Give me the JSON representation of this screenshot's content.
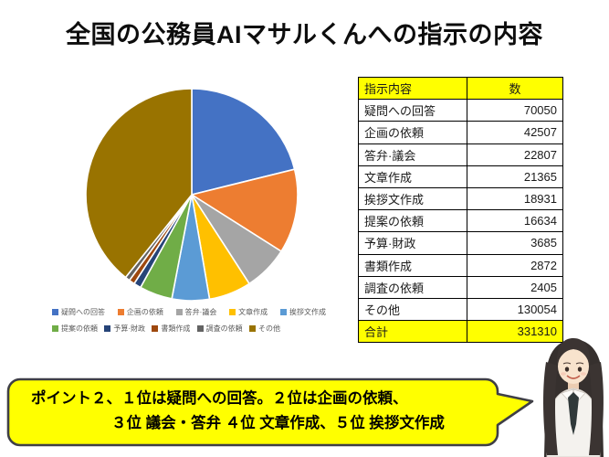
{
  "slide": {
    "title": "全国の公務員AIマサルくんへの指示の内容",
    "background": "#FFFFFF"
  },
  "chart_data": {
    "type": "pie",
    "title": "",
    "categories": [
      "疑問への回答",
      "企画の依頼",
      "答弁·議会",
      "文章作成",
      "挨拶文作成",
      "提案の依頼",
      "予算·財政",
      "書類作成",
      "調査の依頼",
      "その他"
    ],
    "values": [
      70050,
      42507,
      22807,
      21365,
      18931,
      16634,
      3685,
      2872,
      2405,
      130054
    ],
    "colors": [
      "#4472C4",
      "#ED7D31",
      "#A5A5A5",
      "#FFC000",
      "#5B9BD5",
      "#70AD47",
      "#264478",
      "#9E480E",
      "#636363",
      "#997300"
    ],
    "total": 331310,
    "start_angle_deg": 0,
    "direction": "clockwise",
    "legend_position": "bottom",
    "slice_gap_color": "#FFFFFF"
  },
  "table": {
    "headers": [
      "指示内容",
      "数"
    ],
    "rows": [
      {
        "label": "疑問への回答",
        "value": "70050"
      },
      {
        "label": "企画の依頼",
        "value": "42507"
      },
      {
        "label": "答弁·議会",
        "value": "22807"
      },
      {
        "label": "文章作成",
        "value": "21365"
      },
      {
        "label": "挨拶文作成",
        "value": "18931"
      },
      {
        "label": "提案の依頼",
        "value": "16634"
      },
      {
        "label": "予算·財政",
        "value": "3685"
      },
      {
        "label": "書類作成",
        "value": "2872"
      },
      {
        "label": "調査の依頼",
        "value": "2405"
      },
      {
        "label": "その他",
        "value": "130054"
      }
    ],
    "total_row": {
      "label": "合計",
      "value": "331310"
    },
    "highlight_color": "#FFFF00"
  },
  "callout": {
    "line1": "ポイント２、１位は疑問への回答。２位は企画の依頼、",
    "line2": "３位 議会・答弁 ４位 文章作成、５位 挨拶文作成",
    "bubble_color": "#FFFF00",
    "border_color": "#3F3F46"
  }
}
